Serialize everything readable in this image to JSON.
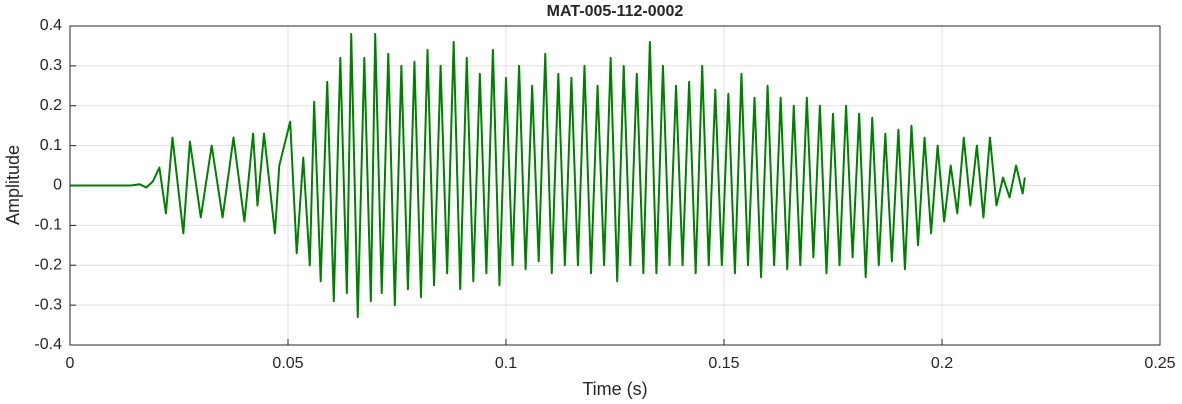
{
  "chart_data": {
    "type": "line",
    "title": "MAT-005-112-0002",
    "x_label": "Time (s)",
    "y_label": "Amplitude",
    "xlim": [
      0,
      0.25
    ],
    "xticks": [
      0,
      0.05,
      0.1,
      0.15,
      0.2,
      0.25
    ],
    "ylim": [
      -0.4,
      0.4
    ],
    "yticks": [
      -0.4,
      -0.3,
      -0.2,
      -0.1,
      0,
      0.1,
      0.2,
      0.3,
      0.4
    ],
    "grid": true,
    "x": [
      0,
      0.014,
      0.016,
      0.0175,
      0.019,
      0.0205,
      0.022,
      0.0235,
      0.026,
      0.0275,
      0.03,
      0.0325,
      0.035,
      0.0375,
      0.04,
      0.042,
      0.043,
      0.0445,
      0.047,
      0.048,
      0.0505,
      0.052,
      0.0535,
      0.055,
      0.056,
      0.0575,
      0.059,
      0.0605,
      0.062,
      0.0635,
      0.0645,
      0.066,
      0.0675,
      0.069,
      0.07,
      0.0715,
      0.073,
      0.0745,
      0.076,
      0.0775,
      0.079,
      0.0805,
      0.082,
      0.0835,
      0.085,
      0.0865,
      0.088,
      0.0895,
      0.091,
      0.0925,
      0.094,
      0.0955,
      0.097,
      0.0985,
      0.1,
      0.1015,
      0.103,
      0.1045,
      0.106,
      0.1075,
      0.109,
      0.1105,
      0.112,
      0.1135,
      0.115,
      0.1165,
      0.118,
      0.1195,
      0.121,
      0.1225,
      0.124,
      0.1255,
      0.127,
      0.1285,
      0.13,
      0.1315,
      0.133,
      0.1345,
      0.136,
      0.1375,
      0.139,
      0.1405,
      0.142,
      0.1435,
      0.145,
      0.1465,
      0.148,
      0.1495,
      0.151,
      0.1525,
      0.154,
      0.1555,
      0.157,
      0.1585,
      0.16,
      0.1615,
      0.163,
      0.1645,
      0.166,
      0.1675,
      0.169,
      0.1705,
      0.172,
      0.1735,
      0.175,
      0.1765,
      0.178,
      0.1795,
      0.181,
      0.1825,
      0.184,
      0.1855,
      0.187,
      0.1885,
      0.19,
      0.1915,
      0.193,
      0.1945,
      0.196,
      0.1975,
      0.199,
      0.2005,
      0.202,
      0.2035,
      0.205,
      0.2065,
      0.208,
      0.2095,
      0.211,
      0.2125,
      0.214,
      0.2155,
      0.217,
      0.2185,
      0.219
    ],
    "series": [
      {
        "color": "#008000",
        "values": [
          0,
          0,
          0.003,
          -0.005,
          0.01,
          0.045,
          -0.07,
          0.12,
          -0.12,
          0.11,
          -0.08,
          0.1,
          -0.08,
          0.12,
          -0.09,
          0.13,
          -0.05,
          0.13,
          -0.12,
          0.05,
          0.16,
          -0.17,
          0.07,
          -0.2,
          0.21,
          -0.24,
          0.26,
          -0.29,
          0.32,
          -0.27,
          0.38,
          -0.33,
          0.32,
          -0.29,
          0.38,
          -0.27,
          0.33,
          -0.3,
          0.3,
          -0.26,
          0.31,
          -0.28,
          0.34,
          -0.25,
          0.3,
          -0.22,
          0.36,
          -0.26,
          0.32,
          -0.24,
          0.28,
          -0.22,
          0.34,
          -0.25,
          0.27,
          -0.2,
          0.3,
          -0.21,
          0.25,
          -0.19,
          0.33,
          -0.22,
          0.28,
          -0.2,
          0.27,
          -0.2,
          0.3,
          -0.22,
          0.25,
          -0.2,
          0.32,
          -0.24,
          0.3,
          -0.2,
          0.28,
          -0.22,
          0.36,
          -0.22,
          0.3,
          -0.2,
          0.25,
          -0.2,
          0.26,
          -0.22,
          0.3,
          -0.2,
          0.24,
          -0.2,
          0.23,
          -0.22,
          0.28,
          -0.2,
          0.22,
          -0.23,
          0.25,
          -0.2,
          0.22,
          -0.21,
          0.2,
          -0.2,
          0.22,
          -0.18,
          0.2,
          -0.22,
          0.18,
          -0.2,
          0.2,
          -0.18,
          0.18,
          -0.23,
          0.17,
          -0.2,
          0.13,
          -0.19,
          0.14,
          -0.21,
          0.15,
          -0.15,
          0.12,
          -0.12,
          0.1,
          -0.09,
          0.05,
          -0.07,
          0.12,
          -0.05,
          0.1,
          -0.08,
          0.12,
          -0.05,
          0.02,
          -0.03,
          0.05,
          -0.02,
          0.02
        ]
      }
    ]
  }
}
